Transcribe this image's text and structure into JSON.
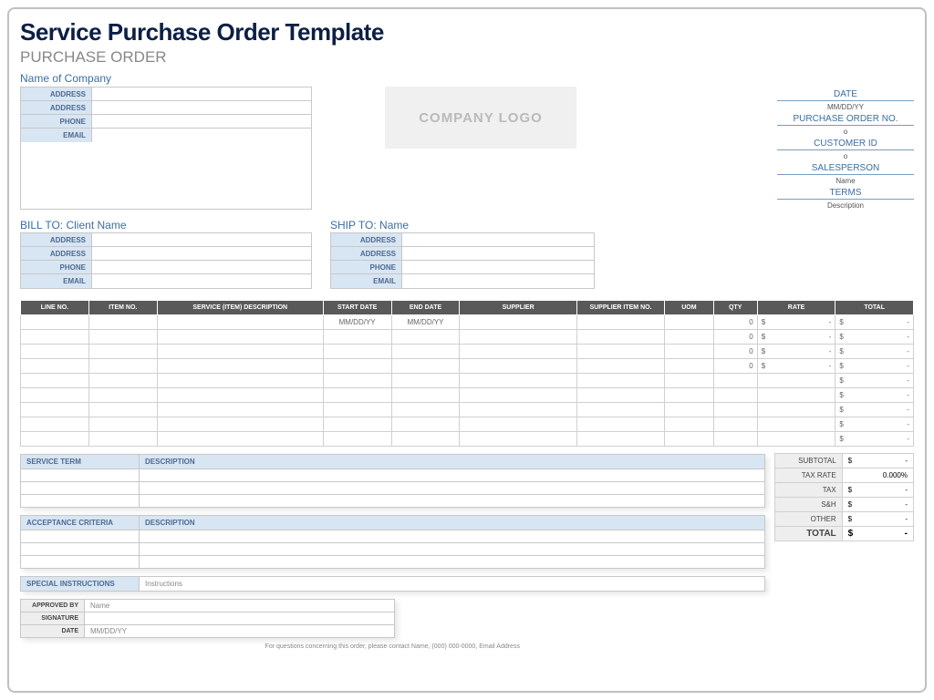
{
  "title": "Service Purchase Order Template",
  "subtitle": "PURCHASE ORDER",
  "company_name": "Name of Company",
  "logo_text": "COMPANY LOGO",
  "addr_labels": [
    "ADDRESS",
    "ADDRESS",
    "PHONE",
    "EMAIL"
  ],
  "meta": [
    {
      "label": "DATE",
      "value": "MM/DD/YY"
    },
    {
      "label": "PURCHASE ORDER NO.",
      "value": "o"
    },
    {
      "label": "CUSTOMER ID",
      "value": "o"
    },
    {
      "label": "SALESPERSON",
      "value": "Name"
    },
    {
      "label": "TERMS",
      "value": "Description"
    }
  ],
  "bill_to": "BILL TO: Client Name",
  "ship_to": "SHIP TO: Name",
  "columns": [
    "LINE NO.",
    "ITEM NO.",
    "SERVICE (ITEM) DESCRIPTION",
    "START DATE",
    "END DATE",
    "SUPPLIER",
    "SUPPLIER ITEM NO.",
    "UOM",
    "QTY",
    "RATE",
    "TOTAL"
  ],
  "col_widths": [
    "70px",
    "70px",
    "170px",
    "70px",
    "70px",
    "120px",
    "90px",
    "50px",
    "45px",
    "80px",
    "80px"
  ],
  "rows": [
    {
      "start": "MM/DD/YY",
      "end": "MM/DD/YY",
      "qty": "0",
      "rate_s": "$",
      "rate_v": "-",
      "tot_s": "$",
      "tot_v": "-"
    },
    {
      "start": "",
      "end": "",
      "qty": "0",
      "rate_s": "$",
      "rate_v": "-",
      "tot_s": "$",
      "tot_v": "-"
    },
    {
      "start": "",
      "end": "",
      "qty": "0",
      "rate_s": "$",
      "rate_v": "-",
      "tot_s": "$",
      "tot_v": "-"
    },
    {
      "start": "",
      "end": "",
      "qty": "0",
      "rate_s": "$",
      "rate_v": "-",
      "tot_s": "$",
      "tot_v": "-"
    },
    {
      "start": "",
      "end": "",
      "qty": "",
      "rate_s": "",
      "rate_v": "",
      "tot_s": "$",
      "tot_v": "-"
    },
    {
      "start": "",
      "end": "",
      "qty": "",
      "rate_s": "",
      "rate_v": "",
      "tot_s": "$",
      "tot_v": "-"
    },
    {
      "start": "",
      "end": "",
      "qty": "",
      "rate_s": "",
      "rate_v": "",
      "tot_s": "$",
      "tot_v": "-"
    },
    {
      "start": "",
      "end": "",
      "qty": "",
      "rate_s": "",
      "rate_v": "",
      "tot_s": "$",
      "tot_v": "-"
    },
    {
      "start": "",
      "end": "",
      "qty": "",
      "rate_s": "",
      "rate_v": "",
      "tot_s": "$",
      "tot_v": "-"
    }
  ],
  "totals": [
    {
      "label": "SUBTOTAL",
      "sym": "$",
      "val": "-"
    },
    {
      "label": "TAX RATE",
      "sym": "",
      "val": "0.000%"
    },
    {
      "label": "TAX",
      "sym": "$",
      "val": "-"
    },
    {
      "label": "S&H",
      "sym": "$",
      "val": "-"
    },
    {
      "label": "OTHER",
      "sym": "$",
      "val": "-"
    }
  ],
  "grand": {
    "label": "TOTAL",
    "sym": "$",
    "val": "-"
  },
  "service_term": {
    "h1": "SERVICE TERM",
    "h2": "DESCRIPTION",
    "rows": 3
  },
  "acceptance": {
    "h1": "ACCEPTANCE CRITERIA",
    "h2": "DESCRIPTION",
    "rows": 3
  },
  "special": {
    "h1": "SPECIAL INSTRUCTIONS",
    "val": "Instructions"
  },
  "sig": [
    {
      "label": "APPROVED BY",
      "val": "Name"
    },
    {
      "label": "SIGNATURE",
      "val": ""
    },
    {
      "label": "DATE",
      "val": "MM/DD/YY"
    }
  ],
  "footer": "For questions concerning this order, please contact Name, (000) 000-0000, Email Address",
  "colors": {
    "title": "#0c1f45",
    "accent": "#3a6ea5",
    "header_bg": "#595959",
    "pale_blue": "#d8e5f3",
    "grey_bg": "#eeeeee",
    "border": "#c8c8c8"
  }
}
